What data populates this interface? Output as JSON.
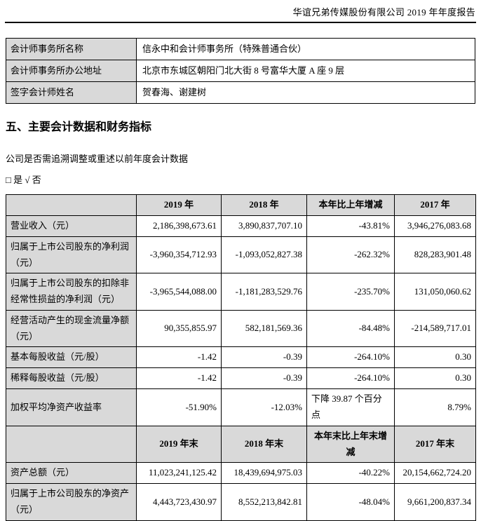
{
  "colors": {
    "table_header_bg": "#d9d9d9",
    "text": "#000000",
    "rule": "#000000"
  },
  "page_header": {
    "title": "华谊兄弟传媒股份有限公司 2019 年年度报告"
  },
  "accountant_table": {
    "rows": [
      {
        "label": "会计师事务所名称",
        "value": "信永中和会计师事务所（特殊普通合伙）"
      },
      {
        "label": "会计师事务所办公地址",
        "value": "北京市东城区朝阳门北大街 8 号富华大厦 A 座 9 层"
      },
      {
        "label": "签字会计师姓名",
        "value": "贺春海、谢建树"
      }
    ]
  },
  "section": {
    "title": "五、主要会计数据和财务指标",
    "question": "公司是否需追溯调整或重述以前年度会计数据",
    "answer": "□ 是 √ 否"
  },
  "financial_table": {
    "header1": {
      "c1": "2019 年",
      "c2": "2018 年",
      "c3": "本年比上年增减",
      "c4": "2017 年"
    },
    "rows1": [
      {
        "label": "营业收入（元）",
        "values": [
          "2,186,398,673.61",
          "3,890,837,707.10",
          "-43.81%",
          "3,946,276,083.68"
        ]
      },
      {
        "label": "归属于上市公司股东的净利润（元）",
        "values": [
          "-3,960,354,712.93",
          "-1,093,052,827.38",
          "-262.32%",
          "828,283,901.48"
        ]
      },
      {
        "label": "归属于上市公司股东的扣除非经常性损益的净利润（元）",
        "values": [
          "-3,965,544,088.00",
          "-1,181,283,529.76",
          "-235.70%",
          "131,050,060.62"
        ]
      },
      {
        "label": "经营活动产生的现金流量净额（元）",
        "values": [
          "90,355,855.97",
          "582,181,569.36",
          "-84.48%",
          "-214,589,717.01"
        ]
      },
      {
        "label": "基本每股收益（元/股）",
        "values": [
          "-1.42",
          "-0.39",
          "-264.10%",
          "0.30"
        ]
      },
      {
        "label": "稀释每股收益（元/股）",
        "values": [
          "-1.42",
          "-0.39",
          "-264.10%",
          "0.30"
        ]
      },
      {
        "label": "加权平均净资产收益率",
        "values": [
          "-51.90%",
          "-12.03%",
          "下降 39.87 个百分点",
          "8.79%"
        ]
      }
    ],
    "header2": {
      "c1": "2019 年末",
      "c2": "2018 年末",
      "c3": "本年末比上年末增减",
      "c4": "2017 年末"
    },
    "rows2": [
      {
        "label": "资产总额（元）",
        "values": [
          "11,023,241,125.42",
          "18,439,694,975.03",
          "-40.22%",
          "20,154,662,724.20"
        ]
      },
      {
        "label": "归属于上市公司股东的净资产（元）",
        "values": [
          "4,443,723,430.97",
          "8,552,213,842.81",
          "-48.04%",
          "9,661,200,837.34"
        ]
      }
    ]
  }
}
